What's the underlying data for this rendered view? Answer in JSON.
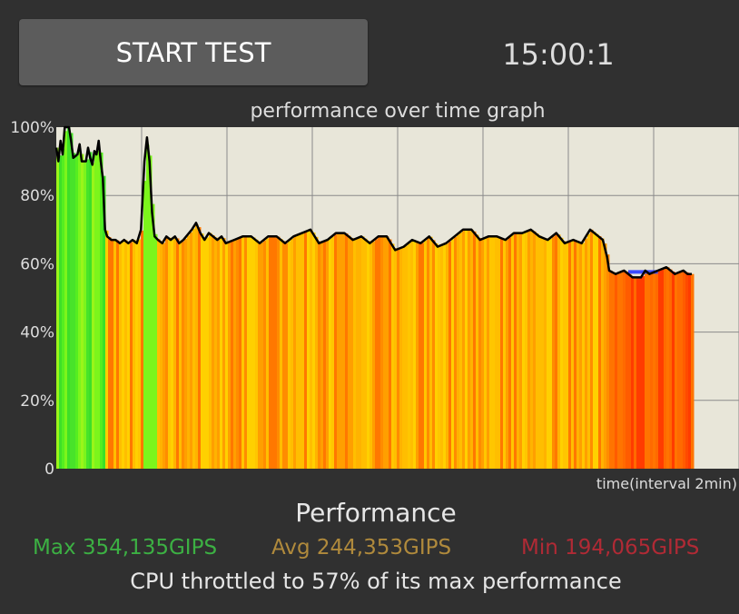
{
  "controls": {
    "start_label": "START TEST",
    "timer": "15:00:1"
  },
  "chart_data": {
    "type": "area",
    "title": "performance over time graph",
    "xlabel": "time(interval 2min)",
    "ylabel": "",
    "ylim": [
      0,
      100
    ],
    "xlim": [
      0,
      15
    ],
    "y_ticks": [
      "0",
      "20%",
      "40%",
      "60%",
      "80%",
      "100%"
    ],
    "grid": true,
    "series": [
      {
        "values": [
          [
            0,
            94
          ],
          [
            0.05,
            90
          ],
          [
            0.1,
            96
          ],
          [
            0.15,
            92
          ],
          [
            0.2,
            100
          ],
          [
            0.3,
            100
          ],
          [
            0.35,
            96
          ],
          [
            0.4,
            91
          ],
          [
            0.5,
            92
          ],
          [
            0.55,
            95
          ],
          [
            0.6,
            90
          ],
          [
            0.7,
            90
          ],
          [
            0.75,
            94
          ],
          [
            0.8,
            91
          ],
          [
            0.85,
            89
          ],
          [
            0.9,
            93
          ],
          [
            0.95,
            92
          ],
          [
            1.0,
            96
          ],
          [
            1.05,
            90
          ],
          [
            1.1,
            85
          ],
          [
            1.15,
            70
          ],
          [
            1.2,
            68
          ],
          [
            1.3,
            67
          ],
          [
            1.4,
            67
          ],
          [
            1.5,
            66
          ],
          [
            1.6,
            67
          ],
          [
            1.7,
            66
          ],
          [
            1.8,
            67
          ],
          [
            1.9,
            66
          ],
          [
            2.0,
            70
          ],
          [
            2.08,
            90
          ],
          [
            2.14,
            97
          ],
          [
            2.2,
            90
          ],
          [
            2.26,
            75
          ],
          [
            2.32,
            68
          ],
          [
            2.4,
            67
          ],
          [
            2.5,
            66
          ],
          [
            2.6,
            68
          ],
          [
            2.7,
            67
          ],
          [
            2.8,
            68
          ],
          [
            2.9,
            66
          ],
          [
            3.0,
            67
          ],
          [
            3.2,
            70
          ],
          [
            3.3,
            72
          ],
          [
            3.4,
            69
          ],
          [
            3.5,
            67
          ],
          [
            3.6,
            69
          ],
          [
            3.7,
            68
          ],
          [
            3.8,
            67
          ],
          [
            3.9,
            68
          ],
          [
            4.0,
            66
          ],
          [
            4.2,
            67
          ],
          [
            4.4,
            68
          ],
          [
            4.6,
            68
          ],
          [
            4.8,
            66
          ],
          [
            5.0,
            68
          ],
          [
            5.2,
            68
          ],
          [
            5.4,
            66
          ],
          [
            5.6,
            68
          ],
          [
            5.8,
            69
          ],
          [
            6.0,
            70
          ],
          [
            6.2,
            66
          ],
          [
            6.4,
            67
          ],
          [
            6.6,
            69
          ],
          [
            6.8,
            69
          ],
          [
            7.0,
            67
          ],
          [
            7.2,
            68
          ],
          [
            7.4,
            66
          ],
          [
            7.6,
            68
          ],
          [
            7.8,
            68
          ],
          [
            8.0,
            64
          ],
          [
            8.2,
            65
          ],
          [
            8.4,
            67
          ],
          [
            8.6,
            66
          ],
          [
            8.8,
            68
          ],
          [
            9.0,
            65
          ],
          [
            9.2,
            66
          ],
          [
            9.4,
            68
          ],
          [
            9.6,
            70
          ],
          [
            9.8,
            70
          ],
          [
            10.0,
            67
          ],
          [
            10.2,
            68
          ],
          [
            10.4,
            68
          ],
          [
            10.6,
            67
          ],
          [
            10.8,
            69
          ],
          [
            11.0,
            69
          ],
          [
            11.2,
            70
          ],
          [
            11.4,
            68
          ],
          [
            11.6,
            67
          ],
          [
            11.8,
            69
          ],
          [
            12.0,
            66
          ],
          [
            12.2,
            67
          ],
          [
            12.4,
            66
          ],
          [
            12.6,
            70
          ],
          [
            12.8,
            68
          ],
          [
            12.9,
            67
          ],
          [
            13.0,
            62
          ],
          [
            13.05,
            58
          ],
          [
            13.2,
            57
          ],
          [
            13.4,
            58
          ],
          [
            13.6,
            56
          ],
          [
            13.8,
            56
          ],
          [
            13.9,
            58
          ],
          [
            14.0,
            57
          ],
          [
            14.2,
            58
          ],
          [
            14.4,
            59
          ],
          [
            14.6,
            57
          ],
          [
            14.8,
            58
          ],
          [
            14.9,
            57
          ],
          [
            15.0,
            57
          ]
        ]
      }
    ]
  },
  "summary": {
    "title": "Performance",
    "max": "Max 354,135GIPS",
    "avg": "Avg 244,353GIPS",
    "min": "Min 194,065GIPS",
    "throttle": "CPU throttled to 57% of its max performance"
  },
  "colors": {
    "background": "#303030",
    "plot_bg": "#e8e6d9",
    "green": "#39e02a",
    "yellow": "#ffc300",
    "orange": "#ff7a00",
    "red": "#ff4500",
    "max_text": "#3cb043",
    "avg_text": "#b08a3c",
    "min_text": "#b02a35"
  }
}
